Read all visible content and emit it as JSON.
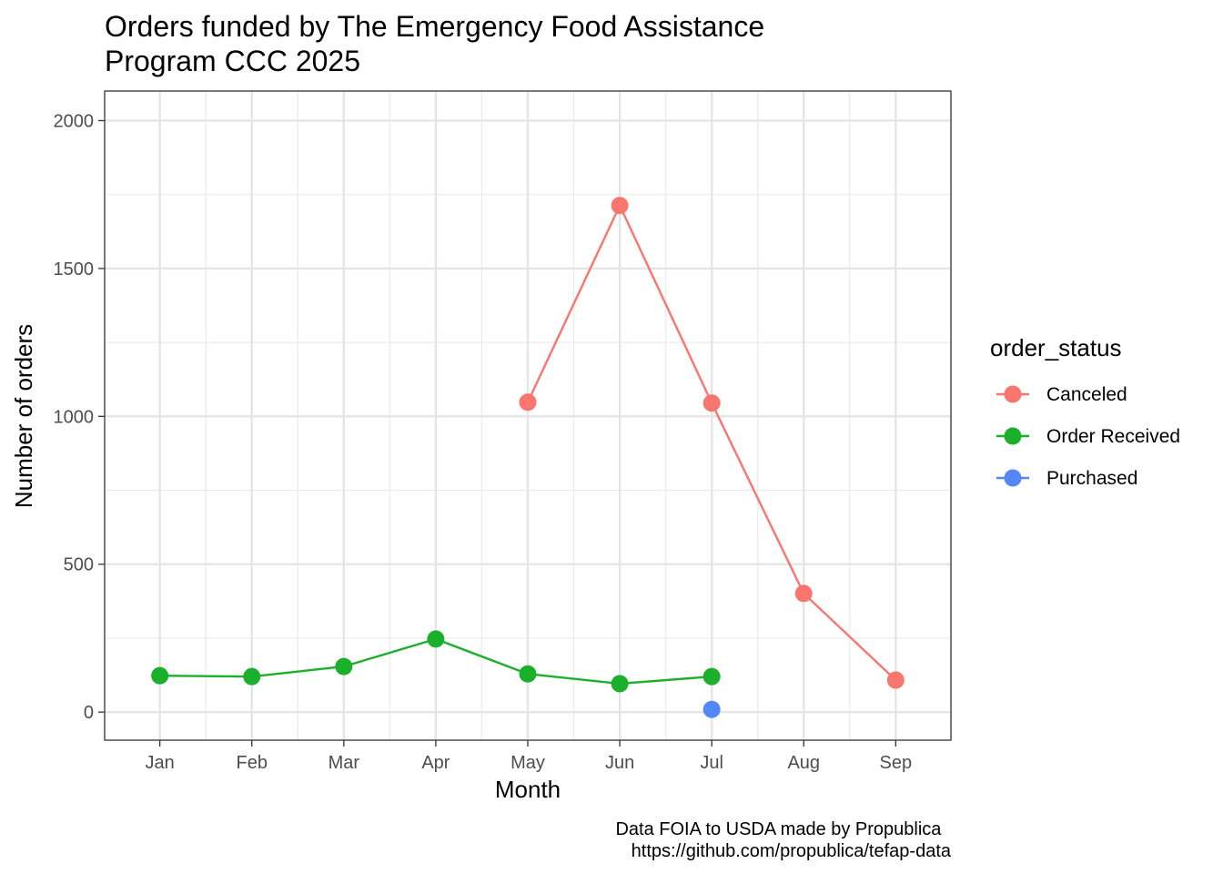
{
  "chart_data": {
    "type": "line",
    "title": "Orders funded by The Emergency Food Assistance Program CCC 2025",
    "title_lines": [
      "Orders funded by The Emergency Food Assistance",
      "Program CCC 2025"
    ],
    "xlabel": "Month",
    "ylabel": "Number of orders",
    "categories": [
      "Jan",
      "Feb",
      "Mar",
      "Apr",
      "May",
      "Jun",
      "Jul",
      "Aug",
      "Sep"
    ],
    "ylim": [
      -95,
      2100
    ],
    "yticks": [
      0,
      500,
      1000,
      1500,
      2000
    ],
    "ytick_labels": [
      "0",
      "500",
      "1000",
      "1500",
      "2000"
    ],
    "grid": true,
    "legend": {
      "title": "order_status",
      "position": "right"
    },
    "series": [
      {
        "name": "Canceled",
        "color": "#F8766D",
        "points": [
          {
            "x": "May",
            "y": 1048
          },
          {
            "x": "Jun",
            "y": 1713
          },
          {
            "x": "Jul",
            "y": 1045
          },
          {
            "x": "Aug",
            "y": 401
          },
          {
            "x": "Sep",
            "y": 108
          }
        ]
      },
      {
        "name": "Order Received",
        "color": "#1BB02B",
        "points": [
          {
            "x": "Jan",
            "y": 123
          },
          {
            "x": "Feb",
            "y": 120
          },
          {
            "x": "Mar",
            "y": 154
          },
          {
            "x": "Apr",
            "y": 247
          },
          {
            "x": "May",
            "y": 129
          },
          {
            "x": "Jun",
            "y": 96
          },
          {
            "x": "Jul",
            "y": 120
          }
        ]
      },
      {
        "name": "Purchased",
        "color": "#5387F9",
        "points": [
          {
            "x": "Jul",
            "y": 9
          }
        ]
      }
    ],
    "caption_lines": [
      "Data FOIA to USDA made by Propublica ",
      "https://github.com/propublica/tefap-data"
    ]
  }
}
